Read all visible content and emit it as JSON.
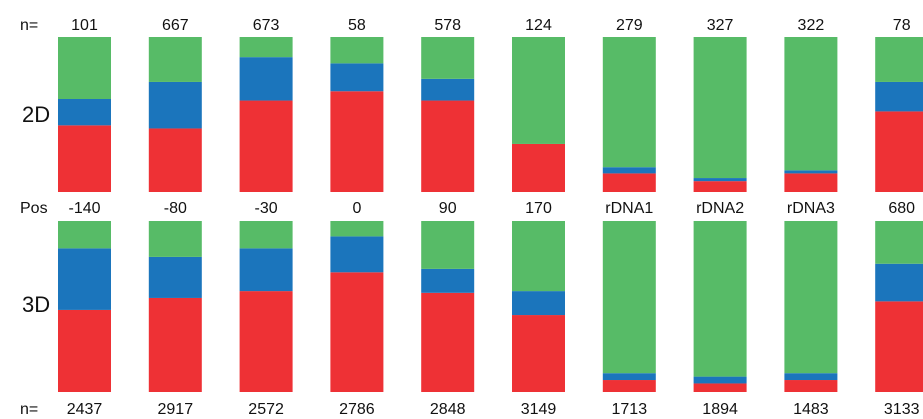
{
  "chart_data": {
    "type": "bar",
    "stacked": true,
    "normalized": true,
    "row_labels": [
      "2D",
      "3D"
    ],
    "count_prefix": "n=",
    "position_prefix": "Pos",
    "categories": [
      "-140",
      "-80",
      "-30",
      "0",
      "90",
      "170",
      "rDNA1",
      "rDNA2",
      "rDNA3",
      "680"
    ],
    "colors": {
      "red": "#ee3135",
      "blue": "#1b75bc",
      "green": "#57bb67"
    },
    "panels": [
      {
        "name": "2D",
        "counts": [
          "101",
          "667",
          "673",
          "58",
          "578",
          "124",
          "279",
          "327",
          "322",
          "78"
        ],
        "series": [
          {
            "color": "red",
            "values": [
              0.43,
              0.41,
              0.59,
              0.65,
              0.59,
              0.31,
              0.12,
              0.07,
              0.12,
              0.52
            ]
          },
          {
            "color": "blue",
            "values": [
              0.17,
              0.3,
              0.28,
              0.18,
              0.14,
              0.0,
              0.04,
              0.02,
              0.02,
              0.19
            ]
          },
          {
            "color": "green",
            "values": [
              0.4,
              0.29,
              0.13,
              0.17,
              0.27,
              0.69,
              0.84,
              0.91,
              0.86,
              0.29
            ]
          }
        ]
      },
      {
        "name": "3D",
        "counts": [
          "2437",
          "2917",
          "2572",
          "2786",
          "2848",
          "3149",
          "1713",
          "1894",
          "1483",
          "3133"
        ],
        "series": [
          {
            "color": "red",
            "values": [
              0.48,
              0.55,
              0.59,
              0.7,
              0.58,
              0.45,
              0.07,
              0.05,
              0.07,
              0.53
            ]
          },
          {
            "color": "blue",
            "values": [
              0.36,
              0.24,
              0.25,
              0.21,
              0.14,
              0.14,
              0.04,
              0.04,
              0.04,
              0.22
            ]
          },
          {
            "color": "green",
            "values": [
              0.16,
              0.21,
              0.16,
              0.09,
              0.28,
              0.41,
              0.89,
              0.91,
              0.89,
              0.25
            ]
          }
        ]
      }
    ]
  }
}
